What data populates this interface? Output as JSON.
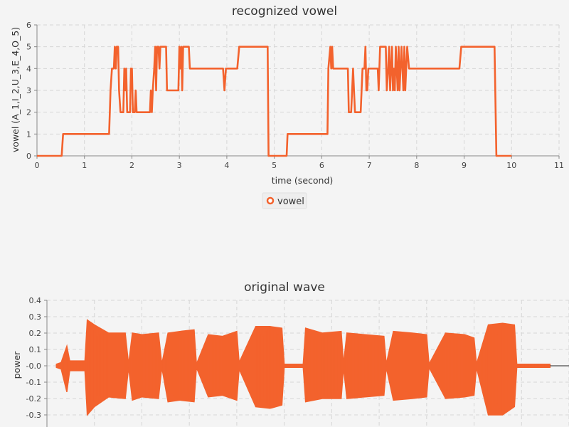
{
  "colors": {
    "series": "#f3622d",
    "background": "#f4f4f4",
    "grid": "#d6d6d6"
  },
  "chart_data": [
    {
      "type": "line",
      "title": "recognized vowel",
      "xlabel": "time (second)",
      "ylabel": "vowel (A_1,I_2,U_3,E_4,O_5)",
      "xlim": [
        0,
        11
      ],
      "ylim": [
        0,
        6
      ],
      "x_ticks": [
        "0",
        "1",
        "2",
        "3",
        "4",
        "5",
        "6",
        "7",
        "8",
        "9",
        "10",
        "11"
      ],
      "y_ticks": [
        "0",
        "1",
        "2",
        "3",
        "4",
        "5",
        "6"
      ],
      "grid": true,
      "legend": "bottom-center",
      "series": [
        {
          "name": "vowel",
          "points": [
            [
              0,
              0
            ],
            [
              0.52,
              0
            ],
            [
              0.55,
              1
            ],
            [
              1.52,
              1
            ],
            [
              1.55,
              3
            ],
            [
              1.58,
              4
            ],
            [
              1.62,
              4
            ],
            [
              1.64,
              5
            ],
            [
              1.66,
              4
            ],
            [
              1.68,
              5
            ],
            [
              1.71,
              5
            ],
            [
              1.73,
              3
            ],
            [
              1.76,
              2
            ],
            [
              1.82,
              2
            ],
            [
              1.84,
              4
            ],
            [
              1.86,
              3
            ],
            [
              1.88,
              4
            ],
            [
              1.9,
              2
            ],
            [
              1.96,
              2
            ],
            [
              1.98,
              4
            ],
            [
              2.0,
              4
            ],
            [
              2.02,
              2
            ],
            [
              2.06,
              2
            ],
            [
              2.08,
              3
            ],
            [
              2.1,
              2
            ],
            [
              2.38,
              2
            ],
            [
              2.4,
              3
            ],
            [
              2.42,
              2
            ],
            [
              2.44,
              3
            ],
            [
              2.47,
              4
            ],
            [
              2.49,
              5
            ],
            [
              2.51,
              3
            ],
            [
              2.53,
              5
            ],
            [
              2.56,
              5
            ],
            [
              2.58,
              4
            ],
            [
              2.6,
              5
            ],
            [
              2.72,
              5
            ],
            [
              2.74,
              3
            ],
            [
              2.98,
              3
            ],
            [
              3.0,
              5
            ],
            [
              3.02,
              4
            ],
            [
              3.04,
              5
            ],
            [
              3.06,
              3
            ],
            [
              3.08,
              5
            ],
            [
              3.2,
              5
            ],
            [
              3.22,
              4
            ],
            [
              3.92,
              4
            ],
            [
              3.95,
              3
            ],
            [
              3.98,
              4
            ],
            [
              4.22,
              4
            ],
            [
              4.26,
              5
            ],
            [
              4.86,
              5
            ],
            [
              4.88,
              0
            ],
            [
              5.26,
              0
            ],
            [
              5.28,
              1
            ],
            [
              6.12,
              1
            ],
            [
              6.14,
              4
            ],
            [
              6.18,
              5
            ],
            [
              6.2,
              4
            ],
            [
              6.22,
              5
            ],
            [
              6.24,
              4
            ],
            [
              6.55,
              4
            ],
            [
              6.57,
              2
            ],
            [
              6.62,
              2
            ],
            [
              6.64,
              3
            ],
            [
              6.66,
              4
            ],
            [
              6.68,
              3
            ],
            [
              6.7,
              2
            ],
            [
              6.82,
              2
            ],
            [
              6.84,
              3
            ],
            [
              6.86,
              4
            ],
            [
              6.9,
              4
            ],
            [
              6.92,
              5
            ],
            [
              6.94,
              3
            ],
            [
              6.96,
              3
            ],
            [
              6.98,
              4
            ],
            [
              7.18,
              4
            ],
            [
              7.2,
              3
            ],
            [
              7.23,
              5
            ],
            [
              7.35,
              5
            ],
            [
              7.37,
              3
            ],
            [
              7.4,
              4
            ],
            [
              7.42,
              5
            ],
            [
              7.44,
              3
            ],
            [
              7.46,
              4
            ],
            [
              7.48,
              5
            ],
            [
              7.5,
              3
            ],
            [
              7.52,
              4
            ],
            [
              7.54,
              3
            ],
            [
              7.56,
              5
            ],
            [
              7.58,
              4
            ],
            [
              7.6,
              3
            ],
            [
              7.62,
              5
            ],
            [
              7.64,
              3
            ],
            [
              7.66,
              4
            ],
            [
              7.68,
              5
            ],
            [
              7.7,
              4
            ],
            [
              7.72,
              3
            ],
            [
              7.74,
              5
            ],
            [
              7.76,
              3
            ],
            [
              7.78,
              4
            ],
            [
              7.8,
              5
            ],
            [
              7.84,
              4
            ],
            [
              8.9,
              4
            ],
            [
              8.94,
              5
            ],
            [
              9.64,
              5
            ],
            [
              9.68,
              0
            ],
            [
              10.0,
              0
            ]
          ]
        }
      ]
    },
    {
      "type": "area",
      "title": "original wave",
      "ylabel": "power",
      "xlim": [
        0,
        11
      ],
      "ylim": [
        -0.35,
        0.4
      ],
      "y_ticks": [
        "0.4",
        "0.3",
        "0.2",
        "0.1",
        "-0.0",
        "-0.1",
        "-0.2",
        "-0.3"
      ],
      "grid": true,
      "series": [
        {
          "name": "",
          "envelope": [
            [
              0.2,
              0.01,
              -0.01
            ],
            [
              0.3,
              0.02,
              -0.02
            ],
            [
              0.42,
              0.12,
              -0.16
            ],
            [
              0.48,
              0.03,
              -0.03
            ],
            [
              0.8,
              0.03,
              -0.03
            ],
            [
              0.85,
              0.28,
              -0.3
            ],
            [
              1.0,
              0.25,
              -0.25
            ],
            [
              1.3,
              0.2,
              -0.19
            ],
            [
              1.65,
              0.2,
              -0.2
            ],
            [
              1.72,
              0.01,
              -0.01
            ],
            [
              1.8,
              0.2,
              -0.21
            ],
            [
              2.0,
              0.19,
              -0.19
            ],
            [
              2.35,
              0.2,
              -0.2
            ],
            [
              2.42,
              0.01,
              -0.01
            ],
            [
              2.55,
              0.2,
              -0.22
            ],
            [
              2.8,
              0.21,
              -0.21
            ],
            [
              3.1,
              0.22,
              -0.22
            ],
            [
              3.15,
              0.01,
              -0.01
            ],
            [
              3.4,
              0.19,
              -0.19
            ],
            [
              3.7,
              0.18,
              -0.18
            ],
            [
              4.0,
              0.21,
              -0.21
            ],
            [
              4.05,
              0.02,
              -0.02
            ],
            [
              4.4,
              0.24,
              -0.25
            ],
            [
              4.7,
              0.24,
              -0.26
            ],
            [
              4.95,
              0.23,
              -0.24
            ],
            [
              5.0,
              0.01,
              -0.01
            ],
            [
              5.4,
              0.01,
              -0.01
            ],
            [
              5.45,
              0.23,
              -0.22
            ],
            [
              5.8,
              0.2,
              -0.2
            ],
            [
              6.2,
              0.21,
              -0.2
            ],
            [
              6.25,
              0.01,
              -0.01
            ],
            [
              6.32,
              0.2,
              -0.2
            ],
            [
              6.7,
              0.19,
              -0.19
            ],
            [
              7.1,
              0.18,
              -0.18
            ],
            [
              7.15,
              0.01,
              -0.01
            ],
            [
              7.3,
              0.21,
              -0.21
            ],
            [
              7.7,
              0.2,
              -0.2
            ],
            [
              8.0,
              0.19,
              -0.19
            ],
            [
              8.05,
              0.01,
              -0.01
            ],
            [
              8.4,
              0.2,
              -0.2
            ],
            [
              8.8,
              0.19,
              -0.19
            ],
            [
              9.0,
              0.17,
              -0.18
            ],
            [
              9.05,
              0.01,
              -0.01
            ],
            [
              9.3,
              0.25,
              -0.3
            ],
            [
              9.6,
              0.26,
              -0.3
            ],
            [
              9.85,
              0.25,
              -0.25
            ],
            [
              9.9,
              0.01,
              -0.01
            ],
            [
              10.6,
              0.01,
              -0.01
            ]
          ]
        }
      ]
    }
  ]
}
